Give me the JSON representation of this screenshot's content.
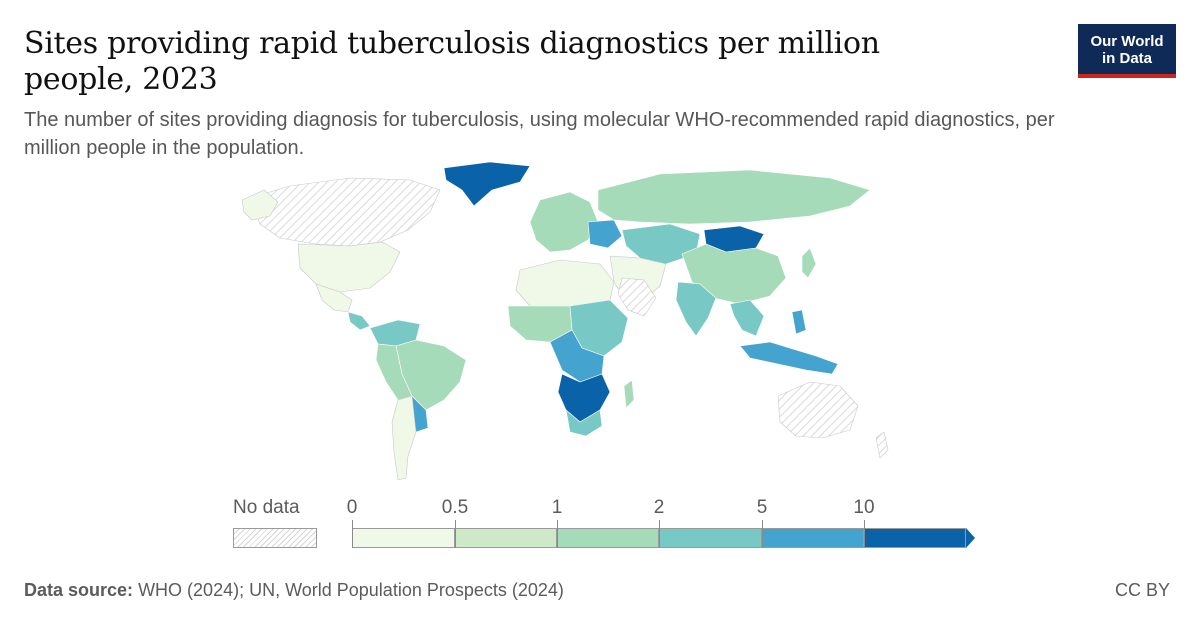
{
  "header": {
    "title": "Sites providing rapid tuberculosis diagnostics per million people, 2023",
    "subtitle": "The number of sites providing diagnosis for tuberculosis, using molecular WHO-recommended rapid diagnostics, per million people in the population."
  },
  "logo": {
    "line1": "Our World",
    "line2": "in Data",
    "bg_color": "#0f2a57",
    "accent_color": "#ce261e"
  },
  "legend": {
    "no_data_label": "No data",
    "ticks": [
      "0",
      "0.5",
      "1",
      "2",
      "5",
      "10"
    ],
    "bins": [
      {
        "range": "0–0.5",
        "color": "#f0f8e8"
      },
      {
        "range": "0.5–1",
        "color": "#cde9c8"
      },
      {
        "range": "1–2",
        "color": "#a6dbb9"
      },
      {
        "range": "2–5",
        "color": "#78c9c6"
      },
      {
        "range": "5–10",
        "color": "#44a4cf"
      },
      {
        "range": ">10",
        "color": "#0a62a8"
      }
    ]
  },
  "map": {
    "type": "choropleth",
    "regions": [
      {
        "name": "North America",
        "color": "#f0f8e8"
      },
      {
        "name": "Greenland",
        "color": "#0a62a8"
      },
      {
        "name": "Central America",
        "color": "#78c9c6"
      },
      {
        "name": "South America",
        "color": "#a6dbb9"
      },
      {
        "name": "Europe",
        "color": "#a6dbb9"
      },
      {
        "name": "North Africa",
        "color": "#f0f8e8"
      },
      {
        "name": "Central Africa",
        "color": "#78c9c6"
      },
      {
        "name": "Southern Africa",
        "color": "#0a62a8"
      },
      {
        "name": "Russia",
        "color": "#a6dbb9"
      },
      {
        "name": "Mongolia",
        "color": "#0a62a8"
      },
      {
        "name": "China",
        "color": "#a6dbb9"
      },
      {
        "name": "India",
        "color": "#78c9c6"
      },
      {
        "name": "Southeast Asia",
        "color": "#44a4cf"
      },
      {
        "name": "Arabian Peninsula",
        "color": "#f0f8e8"
      }
    ]
  },
  "footer": {
    "source_label": "Data source:",
    "source_text": "WHO (2024); UN, World Population Prospects (2024)",
    "license": "CC BY"
  }
}
